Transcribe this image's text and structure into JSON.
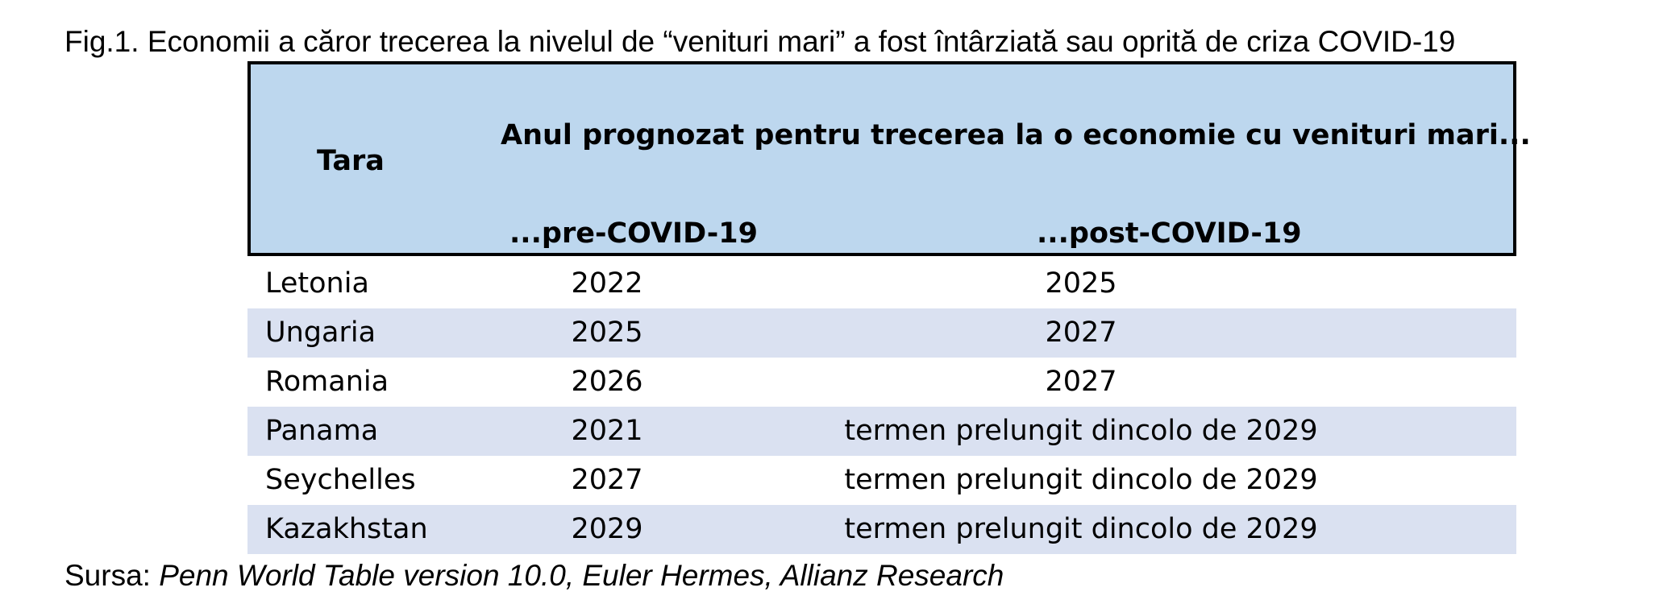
{
  "figure": {
    "title": "Fig.1. Economii a căror trecerea la nivelul de “venituri mari” a fost întârziată sau oprită de criza COVID-19"
  },
  "table": {
    "headers": {
      "country": "Tara",
      "forecast": "Anul prognozat pentru trecerea la o economie cu venituri mari...",
      "pre": "...pre-COVID-19",
      "post": "...post-COVID-19"
    },
    "rows": [
      {
        "country": "Letonia",
        "pre": "2022",
        "post": "2025"
      },
      {
        "country": "Ungaria",
        "pre": "2025",
        "post": "2027"
      },
      {
        "country": "Romania",
        "pre": "2026",
        "post": "2027"
      },
      {
        "country": "Panama",
        "pre": "2021",
        "post": "termen prelungit dincolo de 2029"
      },
      {
        "country": "Seychelles",
        "pre": "2027",
        "post": "termen prelungit dincolo de 2029"
      },
      {
        "country": "Kazakhstan",
        "pre": "2029",
        "post": "termen prelungit dincolo de 2029"
      }
    ]
  },
  "source": {
    "label": "Sursa: ",
    "text": "Penn World Table version 10.0, Euler Hermes, Allianz Research"
  },
  "colors": {
    "header_fill": "#bdd7ee",
    "band_fill": "#dae1f1",
    "border": "#000000"
  }
}
